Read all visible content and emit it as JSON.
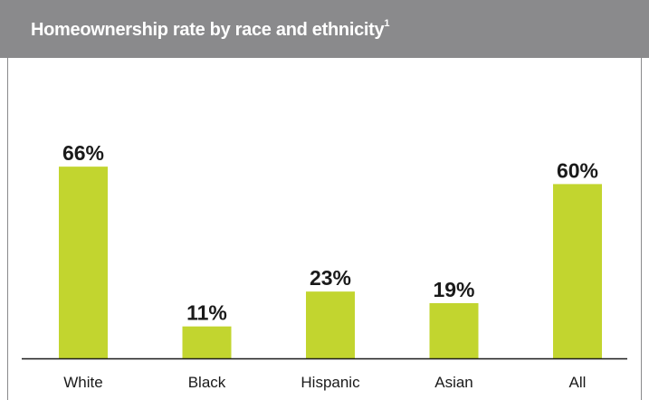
{
  "header": {
    "title": "Homeownership rate by race and ethnicity",
    "footnote_marker": "1"
  },
  "colors": {
    "header_bg": "#8a8a8c",
    "bar": "#c2d52f",
    "baseline": "#1a1a1a"
  },
  "chart_data": {
    "type": "bar",
    "title": "Homeownership rate by race and ethnicity",
    "categories": [
      "White",
      "Black",
      "Hispanic",
      "Asian",
      "All"
    ],
    "values": [
      66,
      11,
      23,
      19,
      60
    ],
    "value_labels": [
      "66%",
      "11%",
      "23%",
      "19%",
      "60%"
    ],
    "xlabel": "",
    "ylabel": "",
    "ylim": [
      0,
      100
    ],
    "grid": false,
    "legend": "none"
  }
}
